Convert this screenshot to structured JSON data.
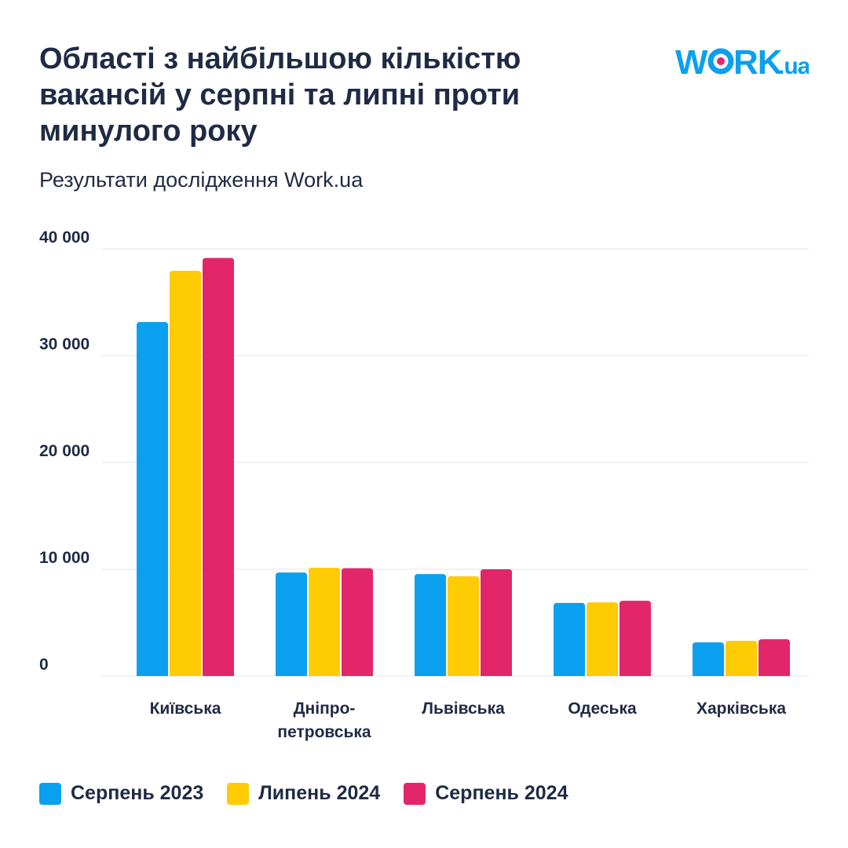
{
  "title": "Області з найбільшою кількістю вакансій у серпні та липні проти минулого року",
  "subtitle": "Результати дослідження Work.ua",
  "logo": {
    "main": "WORK",
    "suffix": ".ua",
    "colors": {
      "text": "#0aa0ef",
      "dot": "#e3266a"
    }
  },
  "chart_data": {
    "type": "bar",
    "categories": [
      "Київська",
      [
        "Дніпро-",
        "петровська"
      ],
      "Львівська",
      "Одеська",
      "Харківська"
    ],
    "series": [
      {
        "name": "Серпень 2023",
        "color": "#0aa0ef",
        "values": [
          33150,
          9700,
          9550,
          6850,
          3150
        ]
      },
      {
        "name": "Липень 2024",
        "color": "#ffcb05",
        "values": [
          37950,
          10150,
          9350,
          6900,
          3300
        ]
      },
      {
        "name": "Серпень 2024",
        "color": "#e3266a",
        "values": [
          39150,
          10100,
          10000,
          7050,
          3450
        ]
      }
    ],
    "yticks": [
      "0",
      "10 000",
      "20 000",
      "30 000",
      "40 000"
    ],
    "ytick_values": [
      0,
      10000,
      20000,
      30000,
      40000
    ],
    "ylim": [
      0,
      40000
    ],
    "grid": true,
    "legend": "bottom-left"
  }
}
